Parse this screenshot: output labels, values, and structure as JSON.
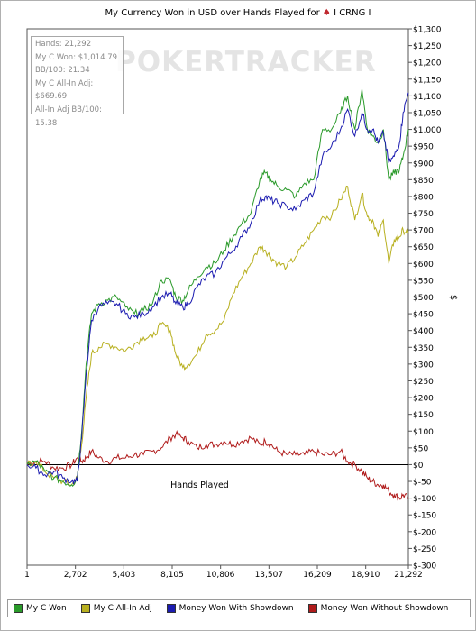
{
  "title": {
    "text": "My Currency Won in USD over Hands Played for",
    "player": "I CRNG I"
  },
  "watermark": "POKERTRACKER",
  "info_box": [
    "Hands: 21,292",
    "My C Won: $1,014.79",
    "BB/100: 21.34",
    "My C All-In Adj: $669.69",
    "All-In Adj BB/100: 15.38"
  ],
  "legend": [
    {
      "label": "My C Won",
      "color": "#2a9a2a"
    },
    {
      "label": "My C All-In Adj",
      "color": "#b8b020"
    },
    {
      "label": "Money Won With Showdown",
      "color": "#1b1bb0"
    },
    {
      "label": "Money Won Without Showdown",
      "color": "#b01b1b"
    }
  ],
  "chart_data": {
    "type": "line",
    "title": "My Currency Won in USD over Hands Played for I CRNG I",
    "xlabel": "Hands Played",
    "ylabel": "$",
    "xlim": [
      1,
      21292
    ],
    "ylim": [
      -300,
      1300
    ],
    "x_ticks": [
      "1",
      "2,702",
      "5,403",
      "8,105",
      "10,806",
      "13,507",
      "16,209",
      "18,910",
      "21,292"
    ],
    "x_tick_values": [
      1,
      2702,
      5403,
      8105,
      10806,
      13507,
      16209,
      18910,
      21292
    ],
    "y_ticks": [
      "$-300",
      "$-250",
      "$-200",
      "$-150",
      "$-100",
      "$-50",
      "$0",
      "$50",
      "$100",
      "$150",
      "$200",
      "$250",
      "$300",
      "$350",
      "$400",
      "$450",
      "$500",
      "$550",
      "$600",
      "$650",
      "$700",
      "$750",
      "$800",
      "$850",
      "$900",
      "$950",
      "$1,000",
      "$1,050",
      "$1,100",
      "$1,150",
      "$1,200",
      "$1,250",
      "$1,300"
    ],
    "y_tick_values": [
      -300,
      -250,
      -200,
      -150,
      -100,
      -50,
      0,
      50,
      100,
      150,
      200,
      250,
      300,
      350,
      400,
      450,
      500,
      550,
      600,
      650,
      700,
      750,
      800,
      850,
      900,
      950,
      1000,
      1050,
      1100,
      1150,
      1200,
      1250,
      1300
    ],
    "grid": false,
    "legend_position": "bottom",
    "series": [
      {
        "name": "My C Won",
        "color": "#2a9a2a",
        "x": [
          1,
          500,
          1000,
          1500,
          2000,
          2500,
          2800,
          3050,
          3300,
          3600,
          4000,
          4500,
          5000,
          5500,
          6000,
          6500,
          7000,
          7500,
          8000,
          8300,
          8700,
          9000,
          9500,
          10000,
          10500,
          11000,
          11500,
          12000,
          12500,
          13000,
          13300,
          13600,
          14000,
          14500,
          15000,
          15500,
          16000,
          16500,
          17000,
          17500,
          17900,
          18300,
          18700,
          19000,
          19300,
          19600,
          19900,
          20200,
          20500,
          20800,
          21000,
          21292
        ],
        "y": [
          0,
          10,
          -20,
          -40,
          -50,
          -60,
          -40,
          100,
          300,
          450,
          480,
          490,
          500,
          470,
          450,
          460,
          480,
          550,
          550,
          500,
          490,
          520,
          560,
          590,
          600,
          640,
          680,
          720,
          750,
          850,
          870,
          850,
          830,
          820,
          800,
          840,
          850,
          1000,
          1000,
          1050,
          1100,
          1000,
          1120,
          1000,
          980,
          960,
          1000,
          850,
          870,
          880,
          920,
          1000
        ]
      },
      {
        "name": "My C All-In Adj",
        "color": "#b8b020",
        "x": [
          1,
          500,
          1000,
          1500,
          2000,
          2500,
          2800,
          3050,
          3300,
          3600,
          4000,
          4500,
          5000,
          5500,
          6000,
          6500,
          7000,
          7500,
          8000,
          8300,
          8700,
          9000,
          9500,
          10000,
          10500,
          11000,
          11500,
          12000,
          12500,
          13000,
          13300,
          13600,
          14000,
          14500,
          15000,
          15500,
          16000,
          16500,
          17000,
          17500,
          17900,
          18300,
          18700,
          19000,
          19300,
          19600,
          19900,
          20200,
          20500,
          20800,
          21000,
          21292
        ],
        "y": [
          0,
          10,
          -20,
          -40,
          -50,
          -60,
          -40,
          60,
          200,
          330,
          350,
          360,
          350,
          340,
          360,
          380,
          380,
          420,
          400,
          330,
          290,
          300,
          330,
          390,
          400,
          430,
          510,
          560,
          600,
          650,
          640,
          620,
          600,
          590,
          620,
          660,
          700,
          740,
          740,
          790,
          830,
          730,
          810,
          740,
          730,
          680,
          730,
          600,
          670,
          680,
          700,
          690
        ]
      },
      {
        "name": "Money Won With Showdown",
        "color": "#1b1bb0",
        "x": [
          1,
          500,
          1000,
          1500,
          2000,
          2500,
          2800,
          3050,
          3300,
          3600,
          4000,
          4500,
          5000,
          5500,
          6000,
          6500,
          7000,
          7500,
          8000,
          8300,
          8700,
          9000,
          9500,
          10000,
          10500,
          11000,
          11500,
          12000,
          12500,
          13000,
          13300,
          13600,
          14000,
          14500,
          15000,
          15500,
          16000,
          16500,
          17000,
          17500,
          17900,
          18300,
          18700,
          19000,
          19300,
          19600,
          19900,
          20200,
          20500,
          20800,
          21000,
          21292
        ],
        "y": [
          0,
          -10,
          -30,
          -20,
          -40,
          -50,
          -50,
          80,
          270,
          430,
          470,
          480,
          480,
          450,
          440,
          450,
          470,
          500,
          510,
          480,
          470,
          480,
          530,
          560,
          570,
          610,
          640,
          680,
          720,
          790,
          800,
          790,
          780,
          770,
          760,
          790,
          810,
          920,
          950,
          1000,
          1060,
          980,
          1050,
          1000,
          1000,
          960,
          990,
          900,
          920,
          960,
          1050,
          1110
        ]
      },
      {
        "name": "Money Won Without Showdown",
        "color": "#b01b1b",
        "x": [
          1,
          500,
          1000,
          1500,
          2000,
          2500,
          2800,
          3050,
          3300,
          3600,
          4000,
          4500,
          5000,
          5500,
          6000,
          6500,
          7000,
          7500,
          8000,
          8300,
          8700,
          9000,
          9500,
          10000,
          10500,
          11000,
          11500,
          12000,
          12500,
          13000,
          13300,
          13600,
          14000,
          14500,
          15000,
          15500,
          16000,
          16500,
          17000,
          17500,
          17900,
          18300,
          18700,
          19000,
          19300,
          19600,
          19900,
          20200,
          20500,
          20800,
          21000,
          21292
        ],
        "y": [
          0,
          10,
          10,
          -10,
          -10,
          0,
          20,
          10,
          20,
          40,
          20,
          10,
          20,
          20,
          30,
          30,
          40,
          50,
          80,
          90,
          80,
          70,
          50,
          60,
          60,
          70,
          60,
          70,
          80,
          60,
          70,
          60,
          40,
          30,
          30,
          30,
          40,
          30,
          30,
          40,
          10,
          0,
          -20,
          -40,
          -50,
          -60,
          -60,
          -80,
          -90,
          -100,
          -90,
          -100
        ]
      }
    ]
  }
}
